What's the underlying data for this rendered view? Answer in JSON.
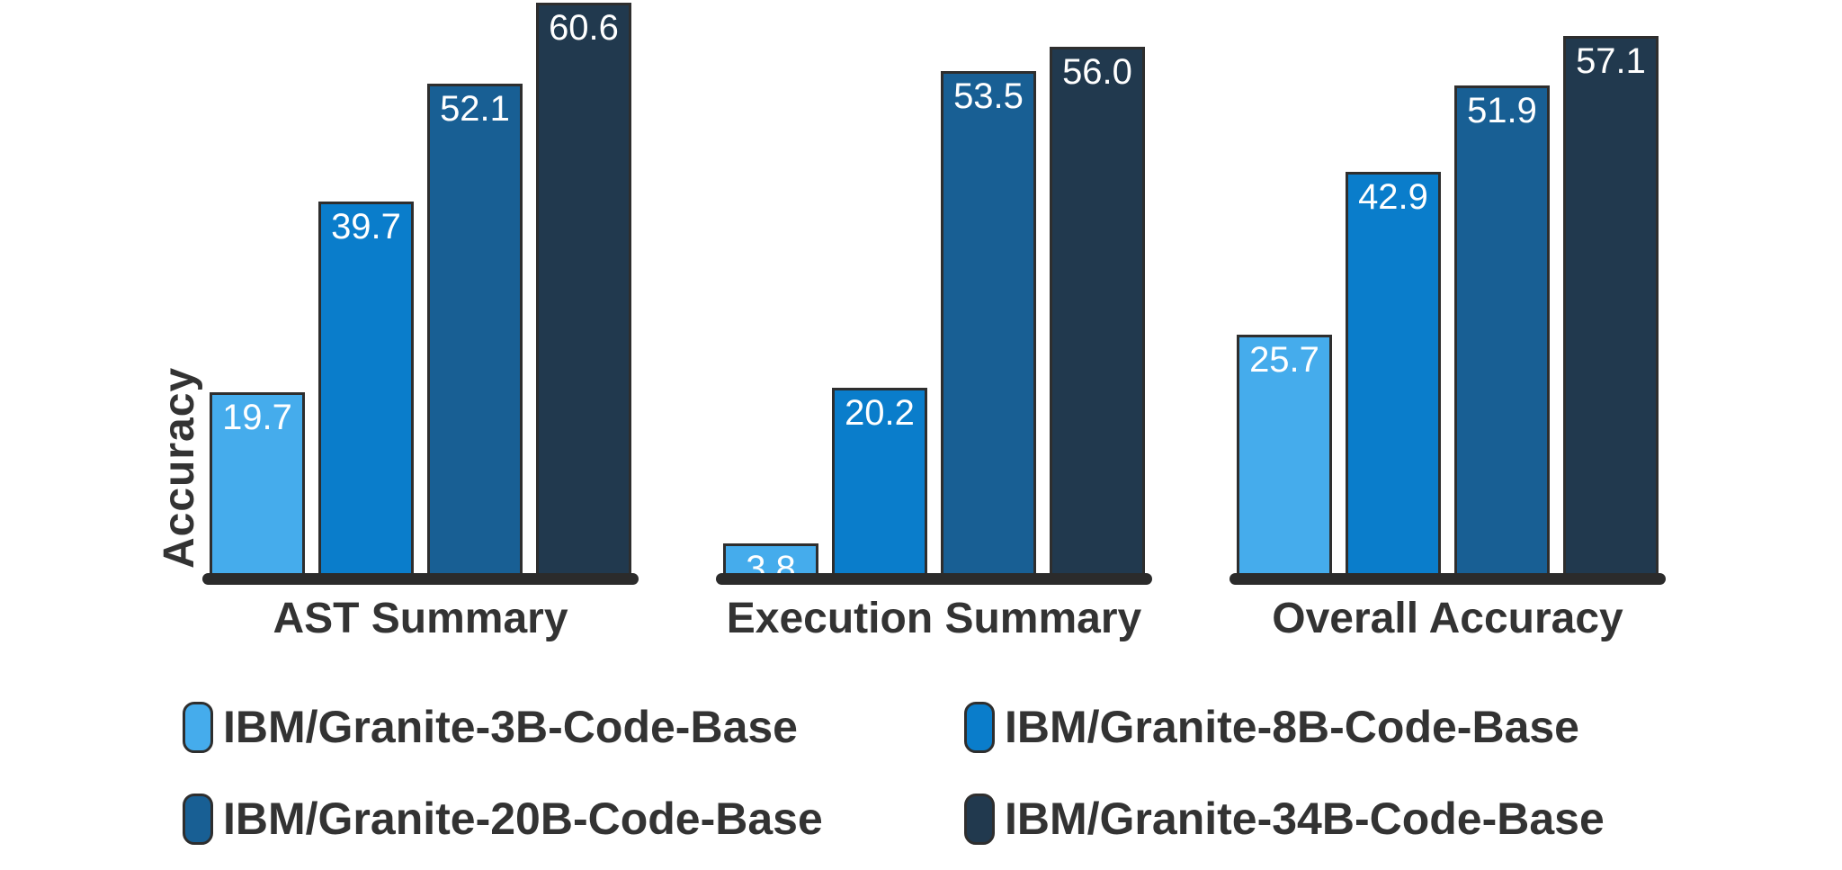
{
  "chart_data": {
    "type": "bar",
    "categories": [
      "AST Summary",
      "Execution Summary",
      "Overall Accuracy"
    ],
    "series": [
      {
        "name": "IBM/Granite-3B-Code-Base",
        "color": "#45ACEC",
        "values": [
          19.7,
          3.8,
          25.7
        ]
      },
      {
        "name": "IBM/Granite-8B-Code-Base",
        "color": "#0A7DCB",
        "values": [
          39.7,
          20.2,
          42.9
        ]
      },
      {
        "name": "IBM/Granite-20B-Code-Base",
        "color": "#185F94",
        "values": [
          52.1,
          53.5,
          51.9
        ]
      },
      {
        "name": "IBM/Granite-34B-Code-Base",
        "color": "#21394E",
        "values": [
          60.6,
          56.0,
          57.1
        ]
      }
    ],
    "title": "",
    "xlabel": "",
    "ylabel": "Accuracy",
    "ylim": [
      0,
      61
    ],
    "grid": false,
    "legend_position": "bottom",
    "bar_value_labels": true,
    "value_label_format": "one-decimal"
  },
  "colors": {
    "background": "#FFFFFF",
    "bar_outline": "#2E2E2E",
    "axis_baseline": "#2B2B2B",
    "label_text": "#333333",
    "value_label_text": "#FFFFFF"
  }
}
